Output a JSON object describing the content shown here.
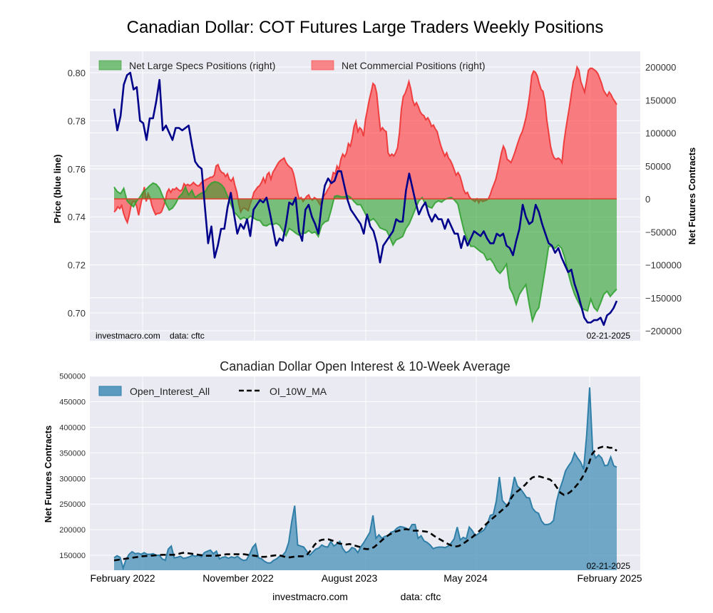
{
  "chart_data": [
    {
      "type": "area",
      "title": "Canadian Dollar: COT Futures Large Traders Weekly Positions",
      "ylabel_left": "Price (blue line)",
      "ylabel_right": "Net Futures Contracts",
      "ylim_left": [
        0.69,
        0.808
      ],
      "ylim_right": [
        -200000,
        200000
      ],
      "yticks_left": [
        "0.80",
        "0.78",
        "0.76",
        "0.74",
        "0.72",
        "0.70"
      ],
      "yticks_left_values": [
        0.8,
        0.78,
        0.76,
        0.74,
        0.72,
        0.7
      ],
      "yticks_right": [
        "200000",
        "150000",
        "100000",
        "50000",
        "0",
        "−50000",
        "−100000",
        "−150000",
        "−200000"
      ],
      "yticks_right_values": [
        200000,
        150000,
        100000,
        50000,
        0,
        -50000,
        -100000,
        -150000,
        -200000
      ],
      "grid": true,
      "legend": "top-left",
      "legend_entries": [
        {
          "label": "Net Large Specs Positions (right)",
          "color": "#2ca02c"
        },
        {
          "label": "Net Commercial Positions (right)",
          "color": "#ff4040"
        }
      ],
      "annotation_left": "investmacro.com    data: cftc",
      "annotation_right": "02-21-2025",
      "x_start": "2022-02",
      "x_end": "2025-02-21",
      "price": [
        0.785,
        0.776,
        0.782,
        0.795,
        0.799,
        0.8,
        0.793,
        0.794,
        0.78,
        0.779,
        0.772,
        0.781,
        0.781,
        0.788,
        0.797,
        0.776,
        0.778,
        0.775,
        0.772,
        0.777,
        0.777,
        0.776,
        0.777,
        0.778,
        0.77,
        0.763,
        0.761,
        0.76,
        0.744,
        0.729,
        0.736,
        0.723,
        0.728,
        0.735,
        0.735,
        0.744,
        0.75,
        0.741,
        0.733,
        0.737,
        0.735,
        0.739,
        0.732,
        0.743,
        0.745,
        0.747,
        0.746,
        0.748,
        0.742,
        0.735,
        0.728,
        0.731,
        0.73,
        0.737,
        0.746,
        0.745,
        0.748,
        0.734,
        0.73,
        0.743,
        0.745,
        0.74,
        0.737,
        0.733,
        0.745,
        0.753,
        0.756,
        0.754,
        0.755,
        0.759,
        0.759,
        0.753,
        0.747,
        0.743,
        0.741,
        0.739,
        0.737,
        0.733,
        0.741,
        0.736,
        0.734,
        0.729,
        0.721,
        0.728,
        0.73,
        0.732,
        0.734,
        0.739,
        0.738,
        0.738,
        0.751,
        0.758,
        0.752,
        0.746,
        0.741,
        0.744,
        0.746,
        0.741,
        0.738,
        0.741,
        0.739,
        0.739,
        0.735,
        0.739,
        0.736,
        0.733,
        0.733,
        0.727,
        0.732,
        0.728,
        0.731,
        0.734,
        0.733,
        0.732,
        0.734,
        0.731,
        0.729,
        0.729,
        0.733,
        0.732,
        0.733,
        0.728,
        0.727,
        0.724,
        0.73,
        0.735,
        0.745,
        0.74,
        0.737,
        0.738,
        0.745,
        0.742,
        0.737,
        0.733,
        0.729,
        0.728,
        0.725,
        0.727,
        0.723,
        0.72,
        0.717,
        0.718,
        0.712,
        0.708,
        0.703,
        0.698,
        0.696,
        0.696,
        0.697,
        0.697,
        0.698,
        0.695,
        0.699,
        0.7,
        0.702,
        0.705
      ],
      "net_large_specs": [
        18000,
        11000,
        8000,
        16000,
        -3000,
        -8000,
        -12000,
        -3000,
        3000,
        11000,
        15000,
        20000,
        24000,
        22000,
        16000,
        4000,
        -8000,
        -17000,
        -14000,
        -7000,
        3000,
        8000,
        18000,
        6000,
        13000,
        2000,
        6000,
        9000,
        10000,
        19000,
        24000,
        26000,
        25000,
        22000,
        16000,
        4000,
        -8000,
        -20000,
        -25000,
        -31000,
        -28000,
        -31000,
        -26000,
        -29000,
        -32000,
        -33000,
        -40000,
        -41000,
        -38000,
        -39000,
        -37000,
        -40000,
        -48000,
        -56000,
        -45000,
        -48000,
        -52000,
        -55000,
        -52000,
        -52000,
        -48000,
        -52000,
        -50000,
        -57000,
        -40000,
        -35000,
        -33000,
        -16000,
        4000,
        5000,
        3000,
        3000,
        5000,
        2000,
        -4000,
        -9000,
        -9000,
        -18000,
        -28000,
        -33000,
        -30000,
        -36000,
        -44000,
        -46000,
        -48000,
        -58000,
        -70000,
        -62000,
        -60000,
        -57000,
        -45000,
        -38000,
        -26000,
        -14000,
        -3000,
        2000,
        -8000,
        -12000,
        -14000,
        -6000,
        -3000,
        -5000,
        -1000,
        1000,
        2000,
        -2000,
        -8000,
        -30000,
        -50000,
        -62000,
        -72000,
        -72000,
        -76000,
        -80000,
        -83000,
        -93000,
        -91000,
        -98000,
        -108000,
        -113000,
        -107000,
        -99000,
        -135000,
        -145000,
        -160000,
        -145000,
        -137000,
        -130000,
        -160000,
        -185000,
        -172000,
        -165000,
        -135000,
        -105000,
        -72000,
        -72000,
        -75000,
        -70000,
        -75000,
        -90000,
        -112000,
        -130000,
        -145000,
        -155000,
        -165000,
        -168000,
        -170000,
        -152000,
        -165000,
        -170000,
        -158000,
        -145000,
        -140000,
        -148000,
        -142000,
        -137000
      ],
      "net_commercial": [
        -20000,
        -17000,
        -12000,
        -15000,
        -10000,
        -22000,
        -30000,
        -36000,
        -25000,
        -10000,
        -4000,
        -4000,
        -12000,
        -25000,
        -10000,
        4000,
        18000,
        -4000,
        8000,
        2000,
        -10000,
        -18000,
        -24000,
        -22000,
        -22000,
        -20000,
        -13000,
        -4000,
        10000,
        15000,
        10000,
        15000,
        14000,
        17000,
        14000,
        12000,
        14000,
        23000,
        20000,
        22000,
        20000,
        22000,
        25000,
        22000,
        20000,
        20000,
        24000,
        27000,
        28000,
        30000,
        31000,
        33000,
        33000,
        36000,
        50000,
        52000,
        44000,
        40000,
        39000,
        34000,
        38000,
        30000,
        27000,
        32000,
        20000,
        10000,
        -8000,
        -20000,
        -15000,
        -14000,
        -16000,
        -18000,
        -8000,
        0,
        10000,
        14000,
        18000,
        20000,
        25000,
        32000,
        25000,
        37000,
        40000,
        30000,
        40000,
        45000,
        50000,
        55000,
        58000,
        60000,
        62000,
        55000,
        51000,
        48000,
        46000,
        38000,
        25000,
        10000,
        0,
        2000,
        -4000,
        0,
        4000,
        6000,
        0,
        -2000,
        2000,
        0,
        -4000,
        -9000,
        -3000,
        5000,
        8000,
        14000,
        18000,
        28000,
        40000,
        38000,
        50000,
        45000,
        60000,
        68000,
        64000,
        70000,
        84000,
        80000,
        92000,
        110000,
        118000,
        102000,
        108000,
        105000,
        95000,
        120000,
        135000,
        150000,
        162000,
        175000,
        172000,
        160000,
        130000,
        104000,
        108000,
        104000,
        102000,
        70000,
        65000,
        68000,
        65000,
        70000,
        78000,
        100000,
        136000,
        155000,
        160000,
        168000,
        178000,
        167000,
        150000,
        142000,
        146000,
        140000,
        132000,
        128000,
        126000,
        120000,
        123000,
        118000,
        110000,
        112000,
        106000,
        102000,
        90000,
        80000,
        72000,
        65000,
        70000,
        62000,
        58000,
        52000,
        44000,
        36000,
        40000,
        35000,
        25000,
        14000,
        8000,
        10000,
        3000,
        0,
        -2000,
        -4000,
        0,
        -6000,
        -1000,
        -4000,
        -3000,
        -2000,
        0,
        6000,
        15000,
        22000,
        30000,
        42000,
        56000,
        70000,
        80000,
        74000,
        60000,
        58000,
        55000,
        62000,
        70000,
        79000,
        88000,
        96000,
        102000,
        112000,
        124000,
        140000,
        160000,
        187000,
        194000,
        192000,
        186000,
        175000,
        166000,
        163000,
        148000,
        120000,
        100000,
        80000,
        68000,
        62000,
        60000,
        62000,
        60000,
        55000,
        85000,
        105000,
        123000,
        140000,
        160000,
        178000,
        186000,
        200000,
        195000,
        178000,
        170000,
        162000,
        178000,
        195000,
        198000,
        198000,
        196000,
        194000,
        190000,
        183000,
        175000,
        165000,
        160000,
        156000,
        162000,
        158000,
        152000,
        148000,
        143000
      ],
      "series_note": "Values estimated visually from the rendered lines"
    },
    {
      "type": "area",
      "title": "Canadian Dollar Open Interest & 10-Week Average",
      "ylabel": "Net Futures Contracts",
      "ylim": [
        120000,
        500000
      ],
      "yticks": [
        "500000",
        "450000",
        "400000",
        "350000",
        "300000",
        "250000",
        "200000",
        "150000"
      ],
      "yticks_values": [
        500000,
        450000,
        400000,
        350000,
        300000,
        250000,
        200000,
        150000
      ],
      "xticks": [
        "February 2022",
        "November 2022",
        "August 2023",
        "May 2024",
        "February 2025"
      ],
      "grid": true,
      "legend": "top-left",
      "legend_entries": [
        {
          "label": "Open_Interest_All",
          "color": "#3a86b4"
        },
        {
          "label": "OI_10W_MA",
          "color": "#000000",
          "style": "dashed"
        }
      ],
      "annotation_right": "02-21-2025",
      "open_interest": [
        145000,
        149000,
        146000,
        125000,
        142000,
        152000,
        157000,
        153000,
        154000,
        152000,
        155000,
        152000,
        152000,
        153000,
        150000,
        150000,
        143000,
        140000,
        162000,
        168000,
        145000,
        146000,
        148000,
        144000,
        145000,
        147000,
        150000,
        148000,
        150000,
        147000,
        155000,
        158000,
        160000,
        153000,
        158000,
        143000,
        146000,
        147000,
        144000,
        147000,
        145000,
        148000,
        143000,
        140000,
        141000,
        152000,
        165000,
        172000,
        145000,
        143000,
        138000,
        135000,
        135000,
        140000,
        143000,
        148000,
        150000,
        157000,
        175000,
        215000,
        247000,
        170000,
        168000,
        166000,
        158000,
        150000,
        156000,
        162000,
        164000,
        170000,
        167000,
        166000,
        177000,
        168000,
        172000,
        177000,
        163000,
        155000,
        158000,
        165000,
        163000,
        155000,
        167000,
        175000,
        185000,
        195000,
        228000,
        183000,
        190000,
        183000,
        187000,
        188000,
        195000,
        197000,
        203000,
        206000,
        205000,
        203000,
        200000,
        210000,
        210000,
        183000,
        188000,
        178000,
        175000,
        170000,
        163000,
        165000,
        166000,
        166000,
        165000,
        168000,
        174000,
        182000,
        205000,
        180000,
        185000,
        182000,
        205000,
        198000,
        188000,
        192000,
        196000,
        200000,
        211000,
        228000,
        230000,
        256000,
        303000,
        257000,
        250000,
        248000,
        270000,
        303000,
        285000,
        280000,
        272000,
        263000,
        262000,
        242000,
        235000,
        232000,
        217000,
        210000,
        210000,
        212000,
        218000,
        255000,
        278000,
        295000,
        315000,
        325000,
        333000,
        350000,
        340000,
        332000,
        318000,
        385000,
        478000,
        355000,
        340000,
        346000,
        340000,
        325000,
        326000,
        342000,
        325000,
        322000
      ],
      "oi_10w_ma": [
        140000,
        141000,
        142000,
        143000,
        144000,
        145000,
        146000,
        147000,
        148000,
        148500,
        149000,
        149500,
        150000,
        150500,
        151000,
        151000,
        151000,
        151000,
        152000,
        154000,
        155000,
        154000,
        153000,
        152000,
        151000,
        150000,
        149000,
        149000,
        149000,
        149000,
        150000,
        151000,
        152000,
        152000,
        152000,
        152000,
        152000,
        152000,
        151000,
        150000,
        149000,
        148000,
        147000,
        147000,
        148000,
        149000,
        150000,
        150000,
        148000,
        146000,
        146000,
        147000,
        148000,
        148000,
        148000,
        152000,
        160000,
        170000,
        177000,
        180000,
        181000,
        181000,
        179000,
        176000,
        173000,
        172000,
        171000,
        172000,
        170000,
        168000,
        166000,
        163000,
        162000,
        163000,
        166000,
        172000,
        178000,
        184000,
        189000,
        193000,
        196000,
        198000,
        200000,
        201000,
        200000,
        198000,
        198000,
        198000,
        197000,
        196000,
        193000,
        188000,
        184000,
        180000,
        176000,
        172000,
        169000,
        167000,
        168000,
        171000,
        176000,
        181000,
        186000,
        192000,
        198000,
        205000,
        212000,
        218000,
        224000,
        230000,
        236000,
        242000,
        248000,
        262000,
        272000,
        276000,
        282000,
        288000,
        296000,
        302000,
        304000,
        304000,
        302000,
        300000,
        298000,
        292000,
        282000,
        272000,
        268000,
        270000,
        275000,
        282000,
        290000,
        300000,
        312000,
        328000,
        348000,
        356000,
        360000,
        362000,
        362000,
        360000,
        360000,
        354000
      ],
      "series_note": "Values estimated visually from the rendered lines"
    }
  ],
  "labels": {
    "title": "Canadian Dollar: COT Futures Large Traders Weekly Positions",
    "price_axis": "Price (blue line)",
    "right_axis": "Net Futures Contracts",
    "legend_specs": "Net Large Specs Positions (right)",
    "legend_comm": "Net Commercial Positions (right)",
    "top_source": "investmacro.com    data: cftc",
    "top_date": "02-21-2025",
    "sub_title": "Canadian Dollar Open Interest & 10-Week Average",
    "oi_axis": "Net Futures Contracts",
    "legend_oi": "Open_Interest_All",
    "legend_ma": "OI_10W_MA",
    "bottom_date": "02-21-2025",
    "footer_site": "investmacro.com",
    "footer_data": "data: cftc"
  },
  "colors": {
    "axes_bg": "#eaeaf2",
    "grid": "#ffffff",
    "price_line": "#00008b",
    "specs_fill": "#2ca02c",
    "comm_fill": "#ff4040",
    "oi_fill": "#5b9bc0",
    "oi_line": "#2f7fa8",
    "ma_line": "#000000"
  }
}
